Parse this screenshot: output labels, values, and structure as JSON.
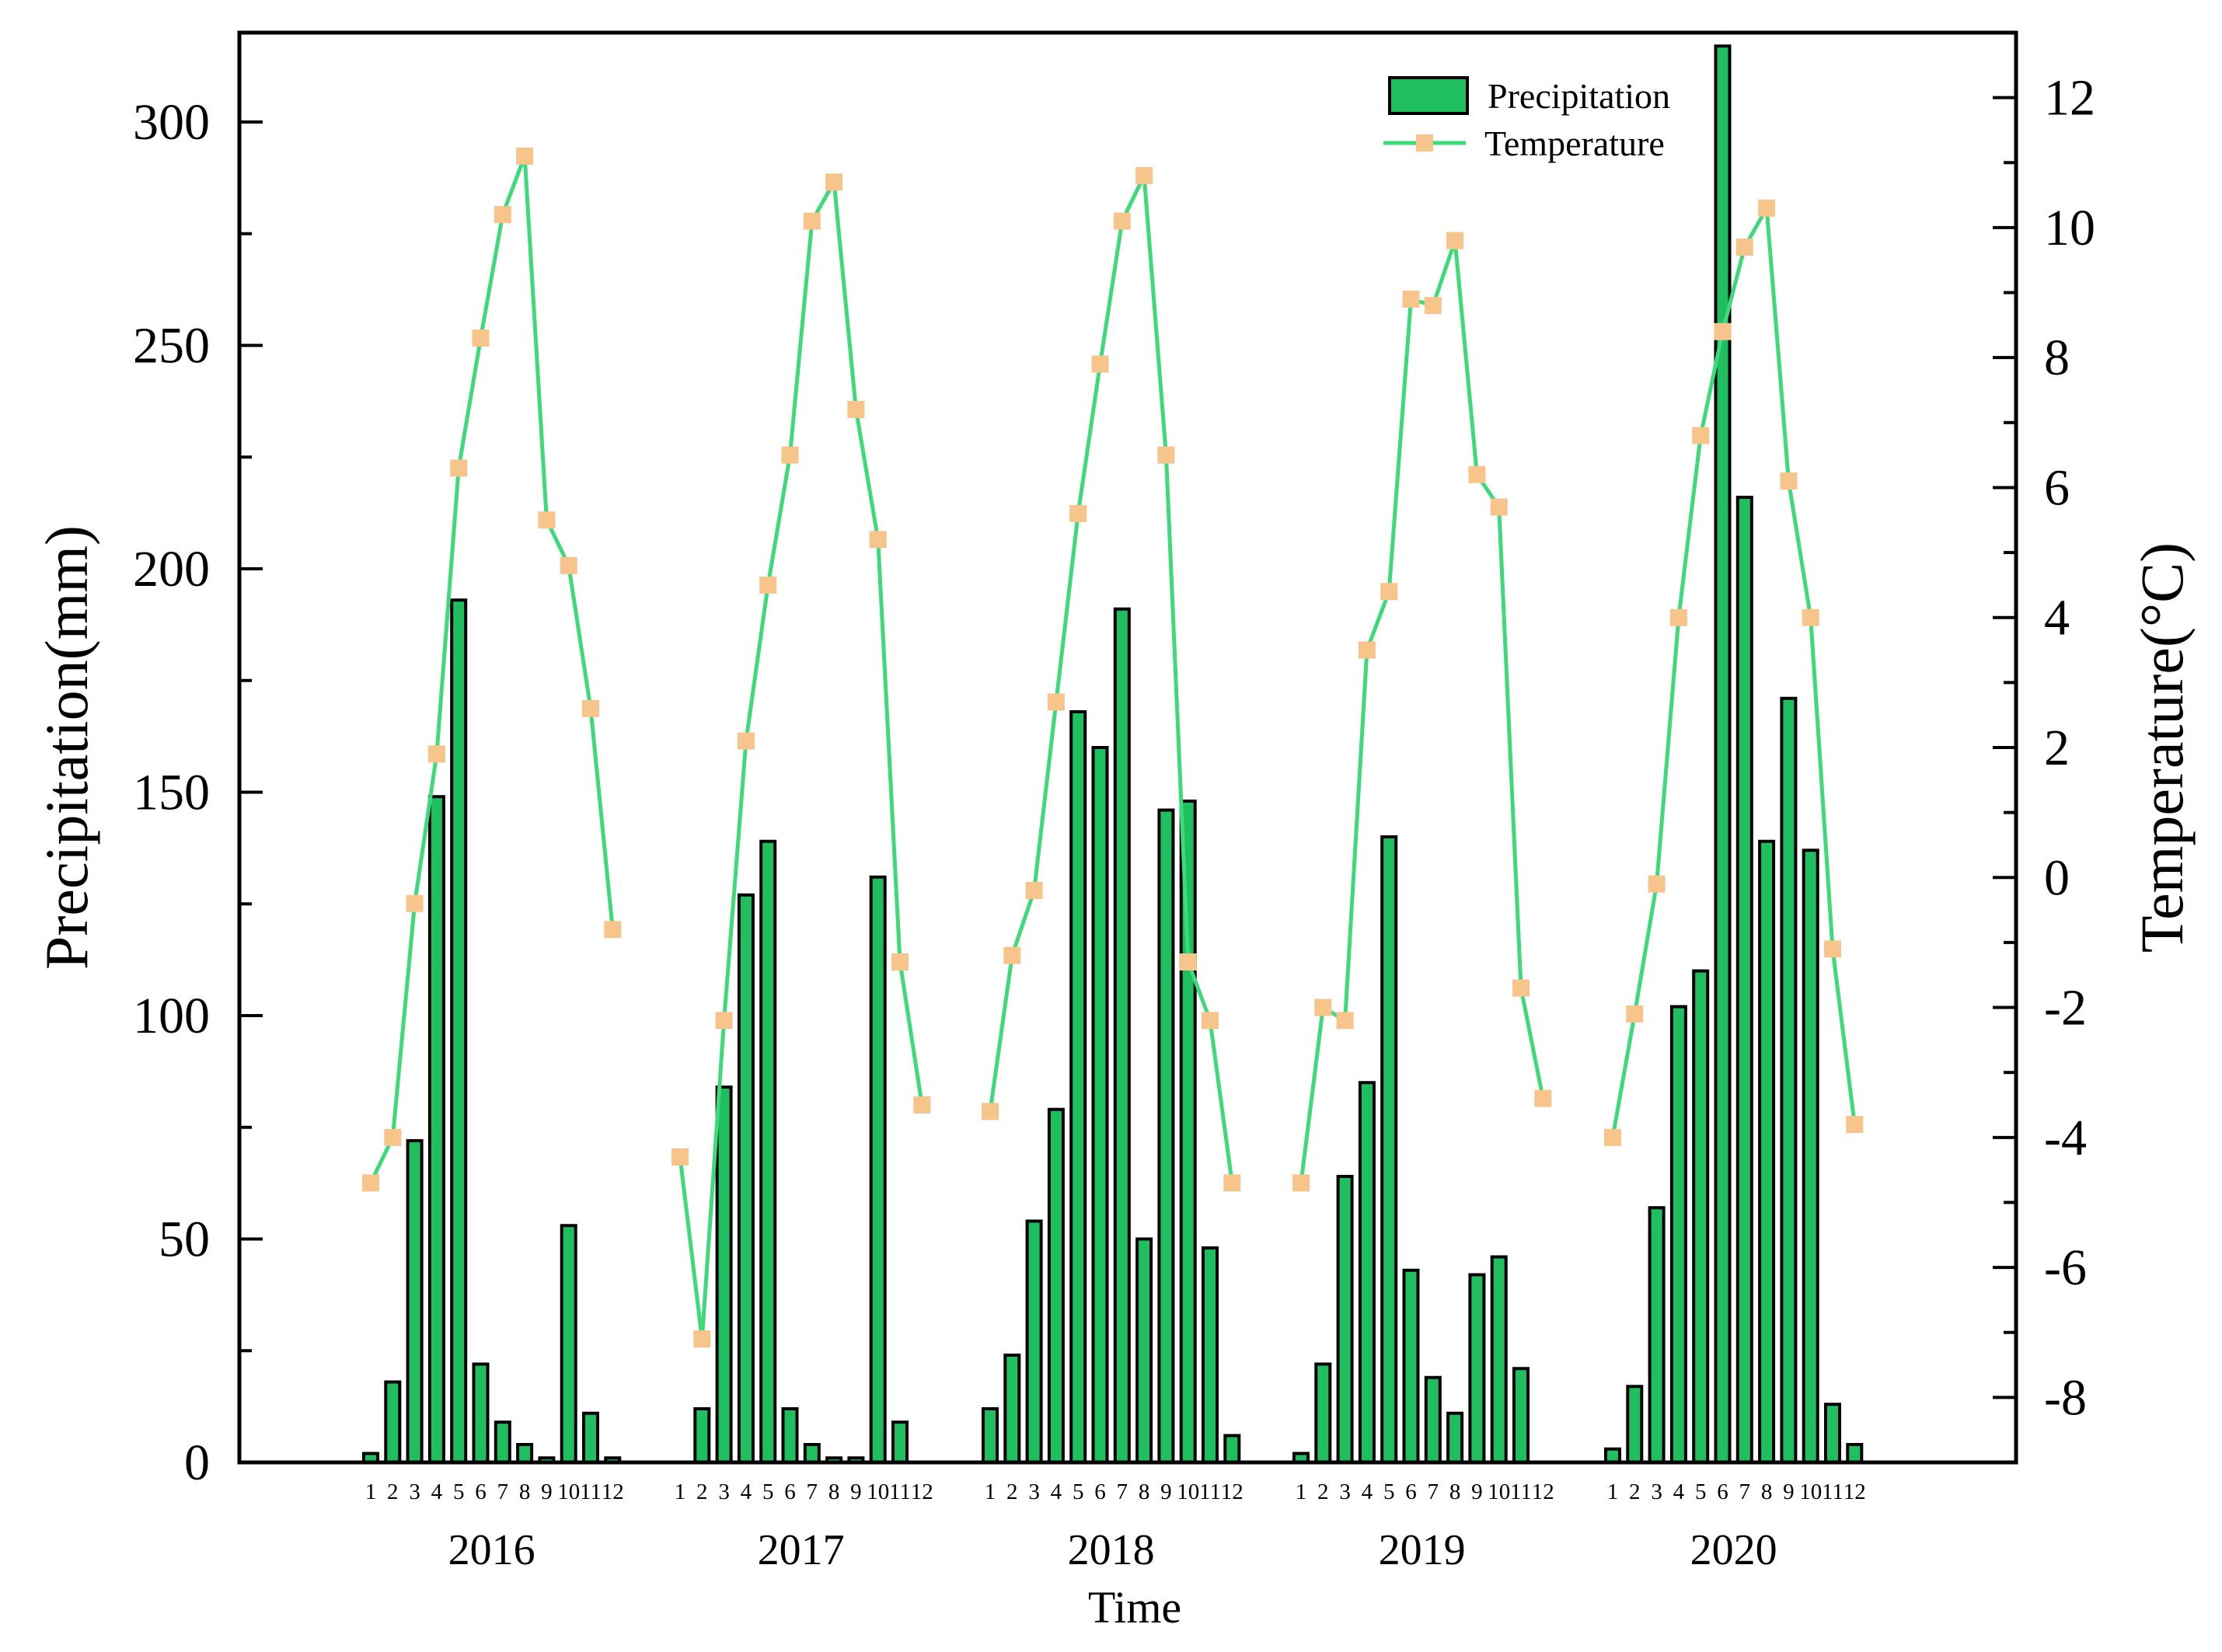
{
  "chart_data": {
    "type": "bar+line",
    "x_title": "Time",
    "y_left_label": "Precipitation(mm)",
    "y_right_label": "Temperature(°C)",
    "y_left_range": [
      0,
      320
    ],
    "y_left_ticks": [
      0,
      50,
      100,
      150,
      200,
      250,
      300
    ],
    "y_right_range": [
      -9,
      13
    ],
    "y_right_ticks": [
      -8,
      -6,
      -4,
      -2,
      0,
      2,
      4,
      6,
      8,
      10,
      12
    ],
    "month_labels": [
      "1",
      "2",
      "3",
      "4",
      "5",
      "6",
      "7",
      "8",
      "9",
      "10",
      "11",
      "12"
    ],
    "legend": [
      {
        "name": "Precipitation",
        "kind": "bar"
      },
      {
        "name": "Temperature",
        "kind": "line"
      }
    ],
    "legend_position": "top-right",
    "colors": {
      "bar_fill": "#1fbf5f",
      "line": "#3dd97a",
      "marker": "#f7c48b",
      "axis": "#000000"
    },
    "years": [
      {
        "year": "2016",
        "precipitation": [
          2,
          18,
          72,
          149,
          193,
          22,
          9,
          4,
          1,
          53,
          11,
          1
        ],
        "temperature": [
          -4.7,
          -4.0,
          -0.4,
          1.9,
          6.3,
          8.3,
          10.2,
          11.1,
          5.5,
          4.8,
          2.6,
          -0.8
        ]
      },
      {
        "year": "2017",
        "precipitation": [
          0,
          12,
          84,
          127,
          139,
          12,
          4,
          1,
          1,
          131,
          9,
          0
        ],
        "temperature": [
          -4.3,
          -7.1,
          -2.2,
          2.1,
          4.5,
          6.5,
          10.1,
          10.7,
          7.2,
          5.2,
          -1.3,
          -3.5
        ]
      },
      {
        "year": "2018",
        "precipitation": [
          12,
          24,
          54,
          79,
          168,
          160,
          191,
          50,
          146,
          148,
          48,
          6
        ],
        "temperature": [
          -3.6,
          -1.2,
          -0.2,
          2.7,
          5.6,
          7.9,
          10.1,
          10.8,
          6.5,
          -1.3,
          -2.2,
          -4.7
        ]
      },
      {
        "year": "2019",
        "precipitation": [
          2,
          22,
          64,
          85,
          140,
          43,
          19,
          11,
          42,
          46,
          21,
          0
        ],
        "temperature": [
          -4.7,
          -2.0,
          -2.2,
          3.5,
          4.4,
          8.9,
          8.8,
          9.8,
          6.2,
          5.7,
          -1.7,
          -3.4
        ]
      },
      {
        "year": "2020",
        "precipitation": [
          3,
          17,
          57,
          102,
          110,
          317,
          216,
          139,
          171,
          137,
          13,
          4
        ],
        "temperature": [
          -4.0,
          -2.1,
          -0.1,
          4.0,
          6.8,
          8.4,
          9.7,
          10.3,
          6.1,
          4.0,
          -1.1,
          -3.8
        ]
      }
    ]
  }
}
